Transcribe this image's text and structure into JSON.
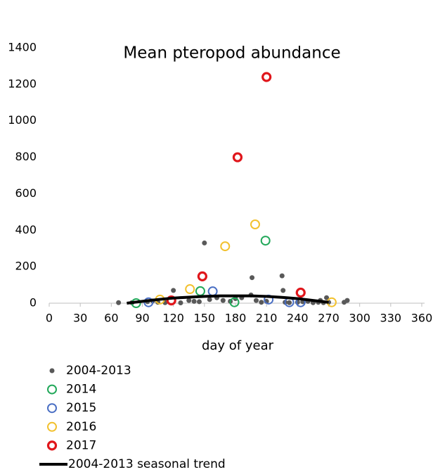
{
  "chart_data": {
    "type": "scatter",
    "title": "Mean pteropod abundance",
    "x_label": "day of year",
    "xlim": [
      0,
      360
    ],
    "xticks": [
      0,
      30,
      60,
      90,
      120,
      150,
      180,
      210,
      240,
      270,
      300,
      330,
      360
    ],
    "ylim": [
      0,
      1400
    ],
    "yticks": [
      0,
      200,
      400,
      600,
      800,
      1000,
      1200,
      1400
    ],
    "grid": false,
    "series": [
      {
        "name": "2004-2013",
        "color": "#595959",
        "marker": "dot",
        "x": [
          67,
          80,
          95,
          100,
          105,
          112,
          120,
          127,
          135,
          140,
          145,
          150,
          155,
          162,
          168,
          175,
          180,
          186,
          195,
          196,
          200,
          205,
          210,
          225,
          226,
          228,
          232,
          240,
          245,
          250,
          255,
          260,
          262,
          265,
          268,
          270,
          285,
          288
        ],
        "y": [
          3,
          3,
          8,
          12,
          5,
          3,
          70,
          2,
          15,
          10,
          8,
          330,
          20,
          30,
          15,
          10,
          25,
          30,
          45,
          140,
          15,
          5,
          10,
          150,
          70,
          5,
          3,
          5,
          8,
          10,
          3,
          5,
          15,
          3,
          30,
          5,
          5,
          15
        ]
      },
      {
        "name": "2014",
        "color": "#22a85a",
        "marker": "circle",
        "x": [
          84,
          146,
          179,
          209
        ],
        "y": [
          0,
          66,
          5,
          343
        ]
      },
      {
        "name": "2015",
        "color": "#4a6fc4",
        "marker": "circle",
        "x": [
          96,
          158,
          212,
          232,
          243
        ],
        "y": [
          5,
          65,
          20,
          5,
          5
        ]
      },
      {
        "name": "2016",
        "color": "#f2c12e",
        "marker": "circle",
        "x": [
          107,
          136,
          170,
          199,
          273
        ],
        "y": [
          20,
          77,
          312,
          432,
          5
        ]
      },
      {
        "name": "2017",
        "color": "#e0161b",
        "marker": "bold-circle",
        "x": [
          118,
          148,
          182,
          210,
          243
        ],
        "y": [
          15,
          147,
          800,
          1240,
          58
        ]
      },
      {
        "name": "2004-2013 seasonal trend",
        "color": "#000000",
        "marker": "line",
        "x": [
          75,
          90,
          105,
          120,
          135,
          150,
          165,
          180,
          195,
          210,
          225,
          240,
          255,
          270
        ],
        "y": [
          0,
          10,
          20,
          28,
          33,
          37,
          40,
          40,
          40,
          37,
          32,
          25,
          15,
          5
        ]
      }
    ]
  }
}
